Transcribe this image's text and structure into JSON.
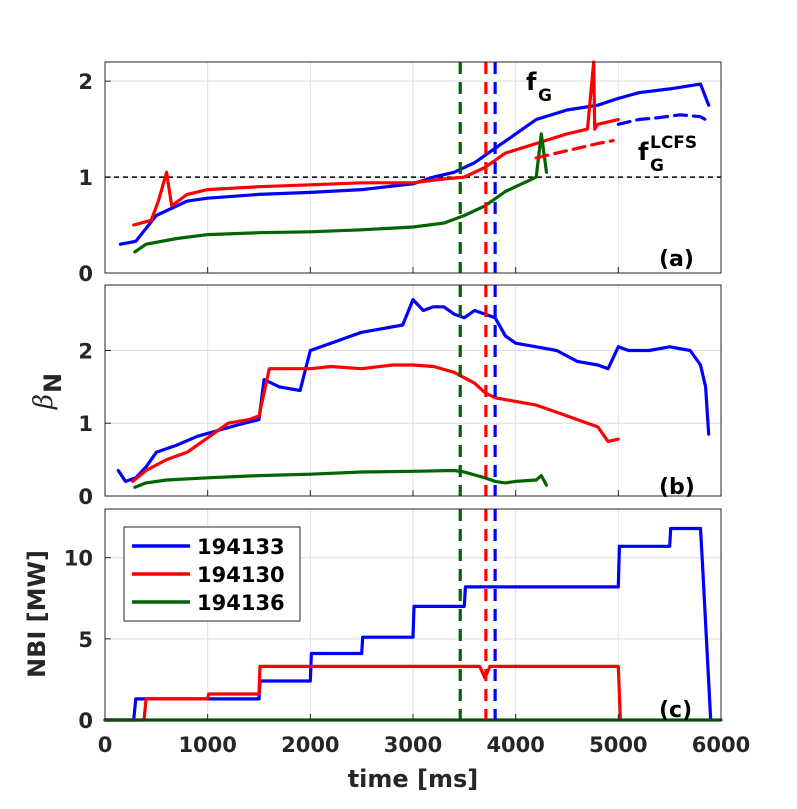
{
  "colors": {
    "194133": "#0000ff",
    "194130": "#ff0000",
    "194136": "#006400",
    "grid": "#dedede",
    "axis": "#262626"
  },
  "chart_data": [
    {
      "id": "a",
      "type": "line",
      "panel_label": "(a)",
      "ylim": [
        0,
        2.2
      ],
      "yticks": [
        "0",
        "1",
        "2"
      ],
      "ytick_values": [
        0,
        1,
        2
      ],
      "ylabel": "",
      "hline": {
        "y": 1,
        "style": "dashed",
        "color": "#000000"
      },
      "annotations": [
        {
          "main": "f",
          "sub": "G",
          "sup": ""
        },
        {
          "main": "f",
          "sub": "G",
          "sup": "LCFS"
        }
      ],
      "series": [
        {
          "name": "194133 fG",
          "color": "#0000ff",
          "dashed": false,
          "x": [
            150,
            300,
            500,
            800,
            1000,
            1500,
            2000,
            2500,
            3000,
            3200,
            3400,
            3600,
            3800,
            4000,
            4200,
            4500,
            4800,
            5000,
            5200,
            5500,
            5800,
            5880
          ],
          "y": [
            0.3,
            0.33,
            0.6,
            0.75,
            0.78,
            0.82,
            0.84,
            0.87,
            0.93,
            1.0,
            1.05,
            1.15,
            1.3,
            1.45,
            1.6,
            1.7,
            1.75,
            1.82,
            1.88,
            1.92,
            1.97,
            1.75
          ]
        },
        {
          "name": "194130 fG",
          "color": "#ff0000",
          "dashed": false,
          "x": [
            280,
            450,
            520,
            600,
            650,
            800,
            1000,
            1500,
            2000,
            2500,
            3000,
            3300,
            3500,
            3700,
            3900,
            4200,
            4500,
            4700,
            4760,
            4770,
            4800,
            5000
          ],
          "y": [
            0.5,
            0.55,
            0.75,
            1.05,
            0.7,
            0.82,
            0.87,
            0.9,
            0.92,
            0.94,
            0.94,
            0.98,
            1.0,
            1.1,
            1.25,
            1.35,
            1.45,
            1.5,
            2.2,
            1.5,
            1.55,
            1.6
          ]
        },
        {
          "name": "194136 fG",
          "color": "#006400",
          "dashed": false,
          "x": [
            290,
            400,
            700,
            1000,
            1500,
            2000,
            2500,
            3000,
            3300,
            3500,
            3700,
            3900,
            4100,
            4200,
            4250,
            4300
          ],
          "y": [
            0.22,
            0.3,
            0.36,
            0.4,
            0.42,
            0.43,
            0.45,
            0.48,
            0.52,
            0.6,
            0.7,
            0.85,
            0.95,
            1.0,
            1.45,
            1.05
          ]
        },
        {
          "name": "194133 fG LCFS",
          "color": "#0000ff",
          "dashed": true,
          "x": [
            5000,
            5200,
            5400,
            5600,
            5800,
            5880
          ],
          "y": [
            1.55,
            1.6,
            1.62,
            1.65,
            1.63,
            1.58
          ]
        },
        {
          "name": "194130 fG LCFS",
          "color": "#ff0000",
          "dashed": true,
          "x": [
            4200,
            4400,
            4600,
            4800,
            4950
          ],
          "y": [
            1.2,
            1.25,
            1.3,
            1.35,
            1.38
          ]
        }
      ]
    },
    {
      "id": "b",
      "type": "line",
      "panel_label": "(b)",
      "ylim": [
        0,
        2.9
      ],
      "yticks": [
        "0",
        "1",
        "2"
      ],
      "ytick_values": [
        0,
        1,
        2
      ],
      "ylabel": "β",
      "ylabel_sub": "N",
      "series": [
        {
          "name": "194133",
          "color": "#0000ff",
          "dashed": false,
          "x": [
            130,
            200,
            300,
            400,
            500,
            700,
            900,
            1100,
            1300,
            1500,
            1550,
            1700,
            1900,
            2000,
            2200,
            2400,
            2500,
            2700,
            2900,
            3000,
            3100,
            3200,
            3300,
            3400,
            3500,
            3600,
            3700,
            3800,
            3900,
            4000,
            4200,
            4400,
            4600,
            4800,
            4900,
            5000,
            5100,
            5300,
            5500,
            5700,
            5800,
            5850,
            5880
          ],
          "y": [
            0.35,
            0.2,
            0.25,
            0.4,
            0.6,
            0.7,
            0.82,
            0.9,
            0.98,
            1.05,
            1.6,
            1.5,
            1.45,
            2.0,
            2.1,
            2.2,
            2.25,
            2.3,
            2.35,
            2.7,
            2.55,
            2.6,
            2.6,
            2.5,
            2.45,
            2.55,
            2.5,
            2.45,
            2.2,
            2.1,
            2.05,
            2.0,
            1.85,
            1.8,
            1.75,
            2.05,
            2.0,
            2.0,
            2.05,
            2.0,
            1.8,
            1.5,
            0.85
          ]
        },
        {
          "name": "194130",
          "color": "#ff0000",
          "dashed": false,
          "x": [
            270,
            400,
            600,
            800,
            1000,
            1200,
            1400,
            1500,
            1600,
            1800,
            2000,
            2200,
            2500,
            2800,
            3000,
            3200,
            3400,
            3600,
            3700,
            3800,
            4000,
            4200,
            4400,
            4600,
            4800,
            4900,
            5000
          ],
          "y": [
            0.2,
            0.35,
            0.5,
            0.6,
            0.8,
            1.0,
            1.05,
            1.1,
            1.75,
            1.75,
            1.75,
            1.78,
            1.75,
            1.8,
            1.8,
            1.78,
            1.7,
            1.55,
            1.42,
            1.35,
            1.3,
            1.25,
            1.15,
            1.05,
            0.95,
            0.75,
            0.78
          ]
        },
        {
          "name": "194136",
          "color": "#006400",
          "dashed": false,
          "x": [
            290,
            400,
            600,
            1000,
            1500,
            2000,
            2500,
            3000,
            3400,
            3500,
            3700,
            3800,
            3900,
            4000,
            4200,
            4250,
            4300
          ],
          "y": [
            0.12,
            0.18,
            0.22,
            0.25,
            0.28,
            0.3,
            0.33,
            0.34,
            0.35,
            0.33,
            0.25,
            0.2,
            0.18,
            0.2,
            0.22,
            0.28,
            0.15
          ]
        }
      ]
    },
    {
      "id": "c",
      "type": "line",
      "panel_label": "(c)",
      "ylim": [
        0,
        13
      ],
      "yticks": [
        "0",
        "5",
        "10"
      ],
      "ytick_values": [
        0,
        5,
        10
      ],
      "ylabel": "NBI [MW]",
      "xlabel": "time [ms]",
      "xlim": [
        0,
        6000
      ],
      "xticks": [
        "0",
        "1000",
        "2000",
        "3000",
        "4000",
        "5000",
        "6000"
      ],
      "xtick_values": [
        0,
        1000,
        2000,
        3000,
        4000,
        5000,
        6000
      ],
      "legend": {
        "placement": "top-left",
        "entries": [
          "194133",
          "194130",
          "194136"
        ]
      },
      "series": [
        {
          "name": "194133",
          "color": "#0000ff",
          "dashed": false,
          "x": [
            0,
            280,
            300,
            1500,
            1510,
            2000,
            2010,
            2500,
            2510,
            3000,
            3010,
            3500,
            3510,
            5000,
            5010,
            5500,
            5510,
            5800,
            5820,
            5900
          ],
          "y": [
            0,
            0,
            1.3,
            1.3,
            2.4,
            2.4,
            4.1,
            4.1,
            5.1,
            5.1,
            7.0,
            7.0,
            8.2,
            8.2,
            10.7,
            10.7,
            11.8,
            11.8,
            9.6,
            0
          ]
        },
        {
          "name": "194130",
          "color": "#ff0000",
          "dashed": false,
          "x": [
            0,
            380,
            400,
            1000,
            1010,
            1500,
            1510,
            3650,
            3700,
            3750,
            5000,
            5020
          ],
          "y": [
            0,
            0,
            1.3,
            1.3,
            1.6,
            1.6,
            3.3,
            3.3,
            2.6,
            3.3,
            3.3,
            0
          ]
        },
        {
          "name": "194136",
          "color": "#006400",
          "dashed": false,
          "x": [
            0,
            6000
          ],
          "y": [
            0,
            0
          ]
        }
      ]
    }
  ],
  "vlines": [
    {
      "x": 3460,
      "color": "#006400"
    },
    {
      "x": 3710,
      "color": "#ff0000"
    },
    {
      "x": 3800,
      "color": "#0000ff"
    }
  ]
}
